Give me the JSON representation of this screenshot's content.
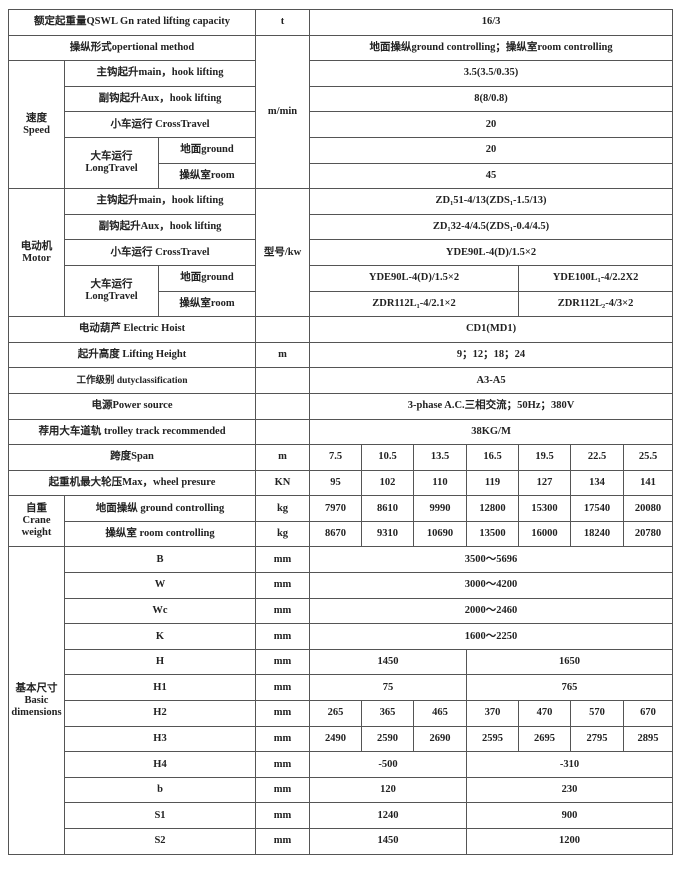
{
  "rated_capacity": {
    "label": "额定起重量QSWL Gn rated lifting capacity",
    "unit": "t",
    "value": "16/3"
  },
  "operational_method": {
    "label": "操纵形式opertional method",
    "value": "地面操纵ground controlling；操纵室room controlling"
  },
  "speed": {
    "group_cn": "速度",
    "group_en": "Speed",
    "unit": "m/min",
    "main": {
      "label": "主钩起升main，hook lifting",
      "value": "3.5(3.5/0.35)"
    },
    "aux": {
      "label": "副钩起升Aux，hook lifting",
      "value": "8(8/0.8)"
    },
    "cross": {
      "label": "小车运行 CrossTravel",
      "value": "20"
    },
    "long": {
      "label_cn": "大车运行",
      "label_en": "LongTravel",
      "ground": {
        "label": "地面ground",
        "value": "20"
      },
      "room": {
        "label": "操纵室room",
        "value": "45"
      }
    }
  },
  "motor": {
    "group_cn": "电动机",
    "group_en": "Motor",
    "unit": "型号/kw",
    "main": {
      "label": "主钩起升main，hook lifting",
      "value": "ZD₁51-4/13(ZDS₁-1.5/13)"
    },
    "aux": {
      "label": "副钩起升Aux，hook lifting",
      "value": "ZD₁32-4/4.5(ZDS₁-0.4/4.5)"
    },
    "cross": {
      "label": "小车运行 CrossTravel",
      "value": "YDE90L-4(D)/1.5×2"
    },
    "long": {
      "label_cn": "大车运行",
      "label_en": "LongTravel",
      "ground": {
        "label": "地面ground",
        "values": [
          "YDE90L-4(D)/1.5×2",
          "YDE100L₁-4/2.2X2"
        ]
      },
      "room": {
        "label": "操纵室room",
        "values": [
          "ZDR112L₁-4/2.1×2",
          "ZDR112L₂-4/3×2"
        ]
      }
    }
  },
  "hoist": {
    "label": "电动葫芦 Electric Hoist",
    "value": "CD1(MD1)"
  },
  "lifting_height": {
    "label": "起升高度 Lifting Height",
    "unit": "m",
    "value": "9；12；18；24"
  },
  "duty": {
    "label": "工作级别 dutyclassification",
    "value": "A3-A5"
  },
  "power": {
    "label": "电源Power source",
    "value": "3-phase A.C.三相交流；50Hz；380V"
  },
  "track": {
    "label": "荐用大车道轨 trolley track recommended",
    "value": "38KG/M"
  },
  "span": {
    "label": "跨度Span",
    "unit": "m",
    "values": [
      "7.5",
      "10.5",
      "13.5",
      "16.5",
      "19.5",
      "22.5",
      "25.5"
    ]
  },
  "wheel": {
    "label": "起重机最大轮压Max，wheel presure",
    "unit": "KN",
    "values": [
      "95",
      "102",
      "110",
      "119",
      "127",
      "134",
      "141"
    ]
  },
  "weight": {
    "group_cn": "自重",
    "group_en": "Crane weight",
    "ground": {
      "label": "地面操纵 ground controlling",
      "unit": "kg",
      "values": [
        "7970",
        "8610",
        "9990",
        "12800",
        "15300",
        "17540",
        "20080"
      ]
    },
    "room": {
      "label": "操纵室 room controlling",
      "unit": "kg",
      "values": [
        "8670",
        "9310",
        "10690",
        "13500",
        "16000",
        "18240",
        "20780"
      ]
    }
  },
  "dimensions": {
    "group_cn": "基本尺寸",
    "group_en": "Basic dimensions",
    "B": {
      "label": "B",
      "unit": "mm",
      "value": "3500～5696"
    },
    "W": {
      "label": "W",
      "unit": "mm",
      "value": "3000～4200"
    },
    "Wc": {
      "label": "Wc",
      "unit": "mm",
      "value": "2000～2460"
    },
    "K": {
      "label": "K",
      "unit": "mm",
      "value": "1600～2250"
    },
    "H": {
      "label": "H",
      "unit": "mm",
      "values": [
        "1450",
        "1650"
      ]
    },
    "H1": {
      "label": "H1",
      "unit": "mm",
      "values": [
        "75",
        "765"
      ]
    },
    "H2": {
      "label": "H2",
      "unit": "mm",
      "values": [
        "265",
        "365",
        "465",
        "370",
        "470",
        "570",
        "670"
      ]
    },
    "H3": {
      "label": "H3",
      "unit": "mm",
      "values": [
        "2490",
        "2590",
        "2690",
        "2595",
        "2695",
        "2795",
        "2895"
      ]
    },
    "H4": {
      "label": "H4",
      "unit": "mm",
      "values": [
        "-500",
        "-310"
      ]
    },
    "b": {
      "label": "b",
      "unit": "mm",
      "values": [
        "120",
        "230"
      ]
    },
    "S1": {
      "label": "S1",
      "unit": "mm",
      "values": [
        "1240",
        "900"
      ]
    },
    "S2": {
      "label": "S2",
      "unit": "mm",
      "values": [
        "1450",
        "1200"
      ]
    }
  }
}
